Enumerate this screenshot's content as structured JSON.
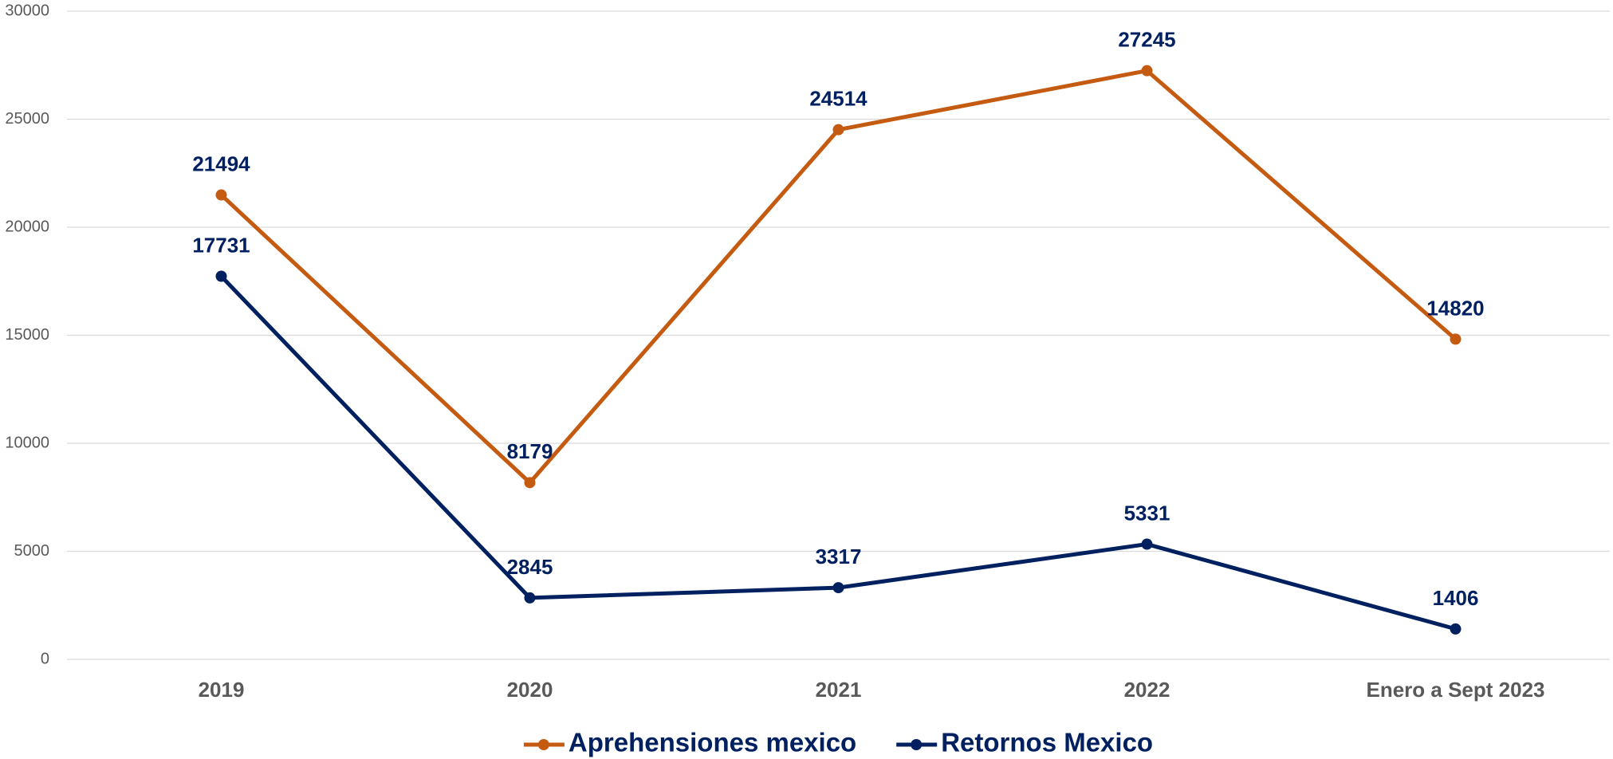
{
  "chart_data": {
    "type": "line",
    "categories": [
      "2019",
      "2020",
      "2021",
      "2022",
      "Enero a Sept 2023"
    ],
    "series": [
      {
        "name": "Aprehensiones mexico",
        "color": "#c55a11",
        "values": [
          21494,
          8179,
          24514,
          27245,
          14820
        ]
      },
      {
        "name": "Retornos Mexico",
        "color": "#002060",
        "values": [
          17731,
          2845,
          3317,
          5331,
          1406
        ]
      }
    ],
    "ylim": [
      0,
      30000
    ],
    "yticks": [
      0,
      5000,
      10000,
      15000,
      20000,
      25000,
      30000
    ],
    "grid": true,
    "legend": "bottom",
    "data_label_color": "#002060"
  }
}
